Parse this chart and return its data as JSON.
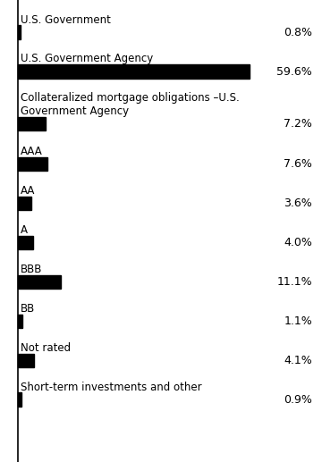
{
  "categories": [
    "U.S. Government",
    "U.S. Government Agency",
    "Collateralized mortgage obligations –U.S.\nGovernment Agency",
    "AAA",
    "AA",
    "A",
    "BBB",
    "BB",
    "Not rated",
    "Short-term investments and other"
  ],
  "values": [
    0.8,
    59.6,
    7.2,
    7.6,
    3.6,
    4.0,
    11.1,
    1.1,
    4.1,
    0.9
  ],
  "max_value": 59.6,
  "bar_color": "#000000",
  "background_color": "#ffffff",
  "label_fontsize": 8.5,
  "value_fontsize": 9.0,
  "vline_color": "#000000"
}
